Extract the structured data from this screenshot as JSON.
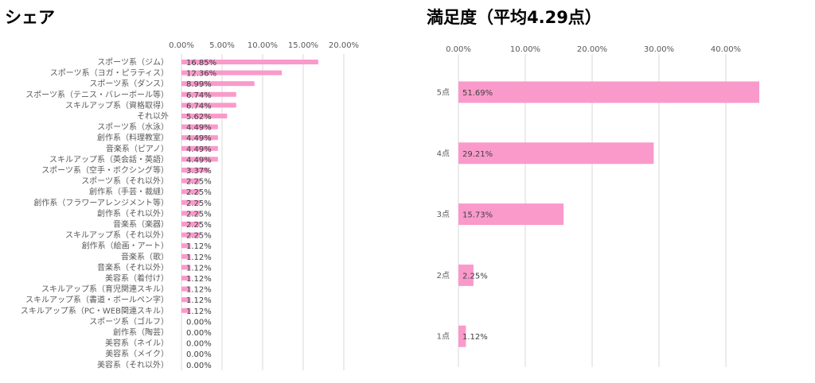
{
  "chart_data": [
    {
      "type": "bar",
      "orientation": "horizontal",
      "title": "シェア",
      "xlim": [
        0,
        0.2
      ],
      "x_ticks": [
        "0.00%",
        "5.00%",
        "10.00%",
        "15.00%",
        "20.00%"
      ],
      "grid": true,
      "bar_color": "#F99ACB",
      "categories": [
        "スポーツ系（ジム）",
        "スポーツ系（ヨガ・ピラティス）",
        "スポーツ系（ダンス）",
        "スポーツ系（テニス・バレーボール等）",
        "スキルアップ系（資格取得）",
        "それ以外",
        "スポーツ系（水泳）",
        "創作系（料理教室）",
        "音楽系（ピアノ）",
        "スキルアップ系（英会話・英語）",
        "スポーツ系（空手・ボクシング等）",
        "スポーツ系（それ以外）",
        "創作系（手芸・裁縫）",
        "創作系（フラワーアレンジメント等）",
        "創作系（それ以外）",
        "音楽系（楽器）",
        "スキルアップ系（それ以外）",
        "創作系（絵画・アート）",
        "音楽系（歌）",
        "音楽系（それ以外）",
        "美容系（着付け）",
        "スキルアップ系（育児関連スキル）",
        "スキルアップ系（書道・ボールペン字）",
        "スキルアップ系（PC・WEB関連スキル）",
        "スポーツ系（ゴルフ）",
        "創作系（陶芸）",
        "美容系（ネイル）",
        "美容系（メイク）",
        "美容系（それ以外）"
      ],
      "values": [
        0.1685,
        0.1236,
        0.0899,
        0.0674,
        0.0674,
        0.0562,
        0.0449,
        0.0449,
        0.0449,
        0.0449,
        0.0337,
        0.0225,
        0.0225,
        0.0225,
        0.0225,
        0.0225,
        0.0225,
        0.0112,
        0.0112,
        0.0112,
        0.0112,
        0.0112,
        0.0112,
        0.0112,
        0,
        0,
        0,
        0,
        0
      ],
      "data_labels": [
        "16.85%",
        "12.36%",
        "8.99%",
        "6.74%",
        "6.74%",
        "5.62%",
        "4.49%",
        "4.49%",
        "4.49%",
        "4.49%",
        "3.37%",
        "2.25%",
        "2.25%",
        "2.25%",
        "2.25%",
        "2.25%",
        "2.25%",
        "1.12%",
        "1.12%",
        "1.12%",
        "1.12%",
        "1.12%",
        "1.12%",
        "1.12%",
        "0.00%",
        "0.00%",
        "0.00%",
        "0.00%",
        "0.00%"
      ]
    },
    {
      "type": "bar",
      "orientation": "horizontal",
      "title": "満足度（平均4.29点）",
      "xlim": [
        0,
        0.45
      ],
      "x_ticks": [
        "0.00%",
        "10.00%",
        "20.00%",
        "30.00%",
        "40.00%"
      ],
      "grid": true,
      "bar_color": "#F99ACB",
      "categories": [
        "5点",
        "4点",
        "3点",
        "2点",
        "1点"
      ],
      "values": [
        0.5169,
        0.2921,
        0.1573,
        0.0225,
        0.0112
      ],
      "data_labels": [
        "51.69%",
        "29.21%",
        "15.73%",
        "2.25%",
        "1.12%"
      ]
    }
  ]
}
